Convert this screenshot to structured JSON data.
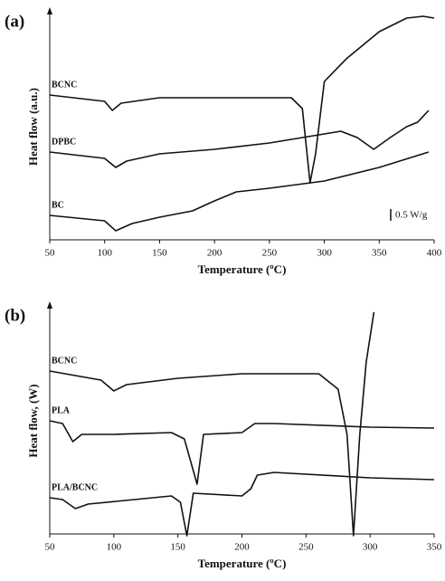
{
  "chart_data": [
    {
      "type": "line",
      "panel_label": "(a)",
      "xlabel": "Temperature (ºC)",
      "ylabel": "Heat flow (a.u.)",
      "annotation": "0.5 W/g",
      "xlim": [
        50,
        400
      ],
      "xticks": [
        50,
        100,
        150,
        200,
        250,
        300,
        350,
        400
      ],
      "ylim": [
        0,
        100
      ],
      "series": [
        {
          "name": "BCNC",
          "color": "#111111",
          "x": [
            50,
            100,
            107,
            115,
            150,
            200,
            270,
            280,
            287,
            292,
            300,
            320,
            350,
            375,
            390,
            400
          ],
          "values": [
            64,
            61.2,
            57.2,
            60.4,
            62.8,
            62.8,
            62.8,
            58,
            25.2,
            38,
            70,
            80,
            92,
            98,
            98.8,
            98
          ]
        },
        {
          "name": "DPBC",
          "color": "#111111",
          "x": [
            50,
            100,
            110,
            120,
            150,
            200,
            250,
            300,
            315,
            330,
            345,
            360,
            375,
            385,
            395
          ],
          "values": [
            38.8,
            36,
            32,
            34.8,
            38,
            40,
            42.8,
            46.8,
            48,
            45.2,
            40,
            45.2,
            50,
            52,
            57.2
          ]
        },
        {
          "name": "BC",
          "color": "#111111",
          "x": [
            50,
            100,
            110,
            125,
            150,
            180,
            200,
            220,
            250,
            300,
            350,
            395
          ],
          "values": [
            10.8,
            8.4,
            4,
            7.2,
            10,
            12.8,
            17.2,
            21.2,
            22.8,
            26,
            32,
            38.8
          ]
        }
      ]
    },
    {
      "type": "line",
      "panel_label": "(b)",
      "xlabel": "Temperature (ºC)",
      "ylabel": "Heat flow, (W)",
      "xlim": [
        50,
        350
      ],
      "xticks": [
        50,
        100,
        150,
        200,
        250,
        300,
        350
      ],
      "ylim": [
        0,
        100
      ],
      "series": [
        {
          "name": "BCNC",
          "color": "#111111",
          "x": [
            50,
            90,
            100,
            110,
            150,
            200,
            260,
            275,
            282,
            287,
            292,
            297,
            303
          ],
          "values": [
            72,
            68,
            63.2,
            66,
            68.8,
            70.8,
            70.8,
            64,
            44,
            -0.8,
            44,
            76,
            98
          ]
        },
        {
          "name": "PLA",
          "color": "#111111",
          "x": [
            50,
            60,
            68,
            75,
            100,
            145,
            155,
            165,
            170,
            200,
            210,
            225,
            300,
            350
          ],
          "values": [
            50,
            48.8,
            40.8,
            44,
            44,
            44.8,
            42,
            22,
            44,
            44.8,
            48.8,
            48.8,
            47.2,
            46.8
          ]
        },
        {
          "name": "PLA/BCNC",
          "color": "#111111",
          "x": [
            50,
            60,
            70,
            80,
            145,
            152,
            157,
            162,
            200,
            207,
            212,
            225,
            300,
            350
          ],
          "values": [
            16,
            15.2,
            11.2,
            13.2,
            16.8,
            14,
            -0.8,
            18,
            16.8,
            20,
            26,
            27.2,
            24.8,
            24
          ]
        }
      ]
    }
  ]
}
